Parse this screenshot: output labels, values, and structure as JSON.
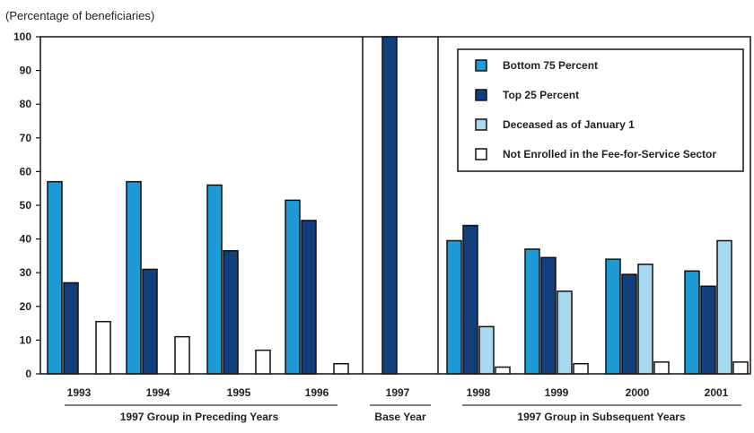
{
  "chart_data": {
    "type": "bar",
    "ylabel": "(Percentage of beneficiaries)",
    "ylim": [
      0,
      100
    ],
    "yticks": [
      "0",
      "10",
      "20",
      "30",
      "40",
      "50",
      "60",
      "70",
      "80",
      "90",
      "100"
    ],
    "categories": [
      "1993",
      "1994",
      "1995",
      "1996",
      "1997",
      "1998",
      "1999",
      "2000",
      "2001"
    ],
    "series": [
      {
        "name": "Bottom 75 Percent",
        "color": "#1e9ad6",
        "values": [
          57,
          57,
          56,
          51.5,
          null,
          39.5,
          37,
          34,
          30.5
        ]
      },
      {
        "name": "Top 25 Percent",
        "color": "#123e7c",
        "values": [
          27,
          31,
          36.5,
          45.5,
          100,
          44,
          34.5,
          29.5,
          26
        ]
      },
      {
        "name": "Deceased as of January 1",
        "color": "#a6d8f0",
        "values": [
          null,
          null,
          null,
          null,
          null,
          14,
          24.5,
          32.5,
          39.5
        ]
      },
      {
        "name": "Not Enrolled in the Fee-for-Service Sector",
        "color": "#ffffff",
        "values": [
          15.5,
          11,
          7,
          3,
          0,
          2,
          3,
          3.5,
          3.5
        ]
      }
    ],
    "groups": [
      {
        "label": "1997 Group in Preceding Years",
        "categories": [
          "1993",
          "1994",
          "1995",
          "1996"
        ]
      },
      {
        "label": "Base Year",
        "categories": [
          "1997"
        ]
      },
      {
        "label": "1997 Group in Subsequent Years",
        "categories": [
          "1998",
          "1999",
          "2000",
          "2001"
        ]
      }
    ],
    "legend_position": "top-right",
    "grid": false
  }
}
